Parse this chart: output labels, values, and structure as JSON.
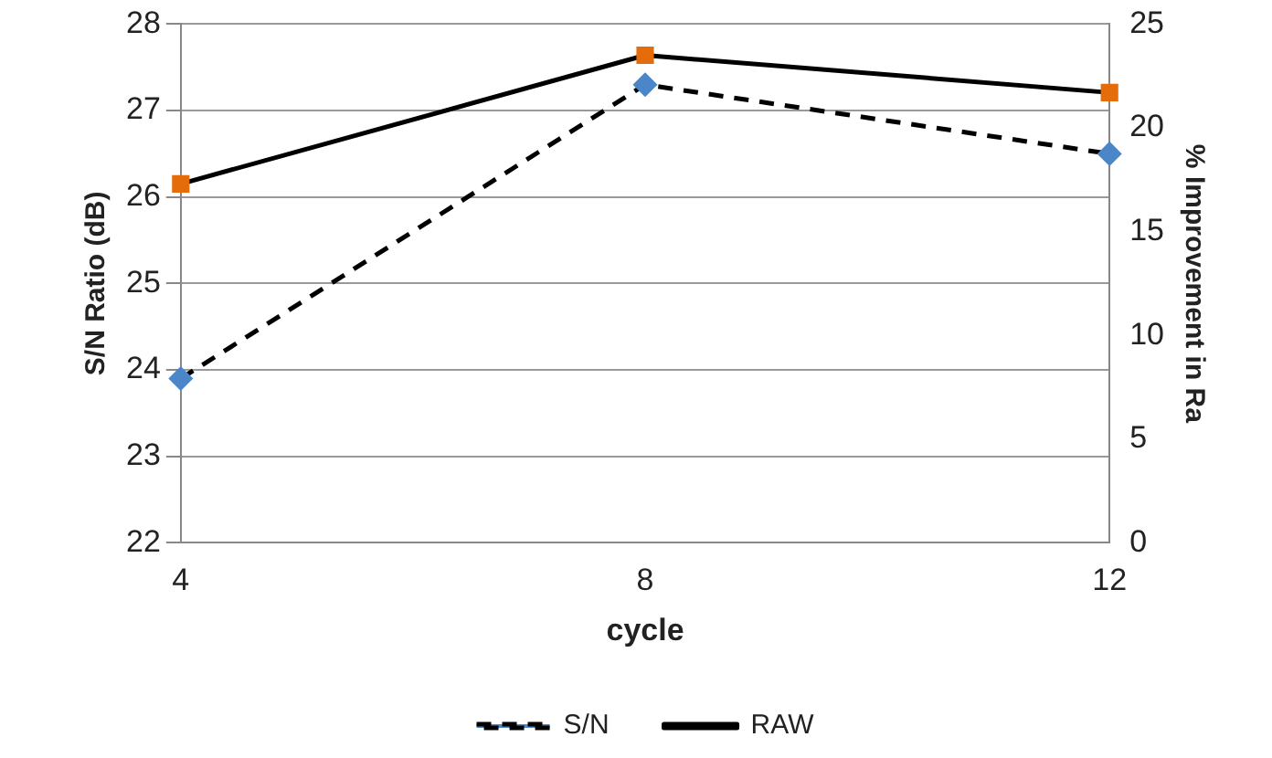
{
  "chart_data": {
    "type": "line",
    "xlabel": "cycle",
    "ylabel": "S/N Ratio (dB)",
    "y2label": "% Improvement in Ra",
    "categories": [
      "4",
      "8",
      "12"
    ],
    "series": [
      {
        "name": "S/N",
        "color": "#000000",
        "colors": [
          "#4a86c8",
          "#4a86c8",
          "#4a86c8"
        ],
        "marker": "diamond",
        "line_style": "dashed",
        "values": [
          23.9,
          27.3,
          26.5
        ]
      },
      {
        "name": "RAW",
        "axis": "y2",
        "color": "#000000",
        "colors": [
          "#e46c0a",
          "#e46c0a",
          "#e46c0a"
        ],
        "marker": "square",
        "line_style": "solid",
        "values": [
          17.3,
          23.5,
          21.7
        ]
      }
    ],
    "ylim": [
      22,
      28
    ],
    "yticks": [
      22,
      23,
      24,
      25,
      26,
      27,
      28
    ],
    "y2lim": [
      0,
      25
    ],
    "y2ticks": [
      0,
      5,
      10,
      15,
      20,
      25
    ],
    "grid": "y",
    "legend": "bottom"
  }
}
